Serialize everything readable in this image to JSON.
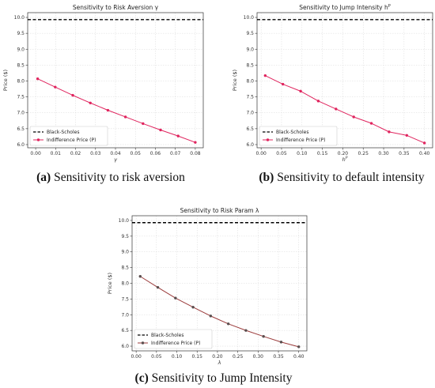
{
  "chart_data": [
    {
      "type": "line",
      "title": "Sensitivity to Risk Aversion γ",
      "xlabel": "γ",
      "ylabel": "Price ($)",
      "caption_label": "(a)",
      "caption_text": " Sensitivity to risk aversion",
      "xlim": [
        -0.004,
        0.084
      ],
      "ylim": [
        5.9,
        10.15
      ],
      "xticks": [
        "0.00",
        "0.01",
        "0.02",
        "0.03",
        "0.04",
        "0.05",
        "0.06",
        "0.07",
        "0.08"
      ],
      "yticks": [
        "6.0",
        "6.5",
        "7.0",
        "7.5",
        "8.0",
        "8.5",
        "9.0",
        "9.5",
        "10.0"
      ],
      "grid": true,
      "legend": "bottom-left",
      "series": [
        {
          "name": "Black-Scholes",
          "style": "dashed",
          "color": "#000000",
          "x": [
            -0.004,
            0.084
          ],
          "y": [
            9.93,
            9.93
          ]
        },
        {
          "name": "Indifference Price (P)",
          "style": "solid-marker",
          "color": "#e0245e",
          "marker_color": "#e0245e",
          "x": [
            0.001,
            0.0098,
            0.0186,
            0.0274,
            0.0362,
            0.045,
            0.0538,
            0.0626,
            0.0714,
            0.08
          ],
          "y": [
            8.07,
            7.81,
            7.55,
            7.31,
            7.08,
            6.87,
            6.66,
            6.46,
            6.27,
            6.07
          ]
        }
      ]
    },
    {
      "type": "line",
      "title": "Sensitivity to Jump Intensity h",
      "title_sup": "P",
      "xlabel": "h",
      "xlabel_sup": "P",
      "ylabel": "Price ($)",
      "caption_label": "(b)",
      "caption_text": " Sensitivity to default intensity",
      "xlim": [
        -0.01,
        0.42
      ],
      "ylim": [
        5.9,
        10.15
      ],
      "xticks": [
        "0.00",
        "0.05",
        "0.10",
        "0.15",
        "0.20",
        "0.25",
        "0.30",
        "0.35",
        "0.40"
      ],
      "yticks": [
        "6.0",
        "6.5",
        "7.0",
        "7.5",
        "8.0",
        "8.5",
        "9.0",
        "9.5",
        "10.0"
      ],
      "grid": true,
      "legend": "bottom-left",
      "series": [
        {
          "name": "Black-Scholes",
          "style": "dashed",
          "color": "#000000",
          "x": [
            -0.01,
            0.42
          ],
          "y": [
            9.93,
            9.93
          ]
        },
        {
          "name": "Indifference Price (P)",
          "style": "solid-marker",
          "color": "#e0245e",
          "marker_color": "#e0245e",
          "x": [
            0.01,
            0.0533,
            0.0967,
            0.14,
            0.1833,
            0.2267,
            0.27,
            0.3133,
            0.3567,
            0.4
          ],
          "y": [
            8.17,
            7.9,
            7.68,
            7.37,
            7.12,
            6.87,
            6.67,
            6.4,
            6.29,
            6.05
          ]
        }
      ]
    },
    {
      "type": "line",
      "title": "Sensitivity to Risk Param λ",
      "xlabel": "λ",
      "ylabel": "Price ($)",
      "caption_label": "(c)",
      "caption_text": " Sensitivity to Jump Intensity",
      "xlim": [
        -0.01,
        0.42
      ],
      "ylim": [
        5.85,
        10.15
      ],
      "xticks": [
        "0.00",
        "0.05",
        "0.10",
        "0.15",
        "0.20",
        "0.25",
        "0.30",
        "0.35",
        "0.40"
      ],
      "yticks": [
        "6.0",
        "6.5",
        "7.0",
        "7.5",
        "8.0",
        "8.5",
        "9.0",
        "9.5",
        "10.0"
      ],
      "grid": true,
      "legend": "bottom-left",
      "series": [
        {
          "name": "Black-Scholes",
          "style": "dashed",
          "color": "#000000",
          "x": [
            -0.01,
            0.42
          ],
          "y": [
            9.93,
            9.93
          ]
        },
        {
          "name": "Indifference Price (P)",
          "style": "solid-marker",
          "color": "#9b3b3b",
          "marker_color": "#5a4e4e",
          "x": [
            0.01,
            0.0533,
            0.0967,
            0.14,
            0.1833,
            0.2267,
            0.27,
            0.3133,
            0.3567,
            0.4
          ],
          "y": [
            8.22,
            7.87,
            7.53,
            7.24,
            6.96,
            6.71,
            6.5,
            6.31,
            6.13,
            5.98
          ]
        }
      ]
    }
  ]
}
